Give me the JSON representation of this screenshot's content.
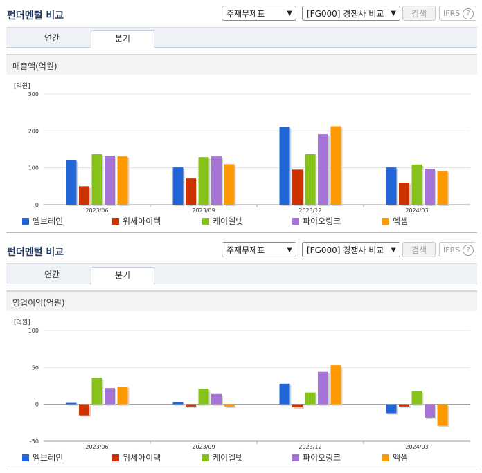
{
  "panels": [
    {
      "title": "펀더멘털 비교",
      "select_statement": "주재무제표",
      "select_compare": "[FG000] 경쟁사 비교",
      "search_label": "검색",
      "ifrs_label": "IFRS",
      "help_label": "?",
      "tabs": [
        "연간",
        "분기"
      ],
      "active_tab": "분기",
      "metric_title": "매출액(억원)",
      "unit": "[억원]"
    },
    {
      "title": "펀더멘털 비교",
      "select_statement": "주재무제표",
      "select_compare": "[FG000] 경쟁사 비교",
      "search_label": "검색",
      "ifrs_label": "IFRS",
      "help_label": "?",
      "tabs": [
        "연간",
        "분기"
      ],
      "active_tab": "분기",
      "metric_title": "영업이익(억원)",
      "unit": "[억원]"
    }
  ],
  "chart_data": [
    {
      "type": "bar",
      "title": "매출액(억원)",
      "ylabel": "[억원]",
      "categories": [
        "2023/06",
        "2023/09",
        "2023/12",
        "2024/03"
      ],
      "ylim": [
        0,
        300
      ],
      "yticks": [
        0,
        100,
        200,
        300
      ],
      "grid": true,
      "legend": "bottom",
      "series": [
        {
          "name": "엠브레인",
          "color": "#2166d9",
          "values": [
            120,
            101,
            211,
            101
          ]
        },
        {
          "name": "위세아이텍",
          "color": "#cc3300",
          "values": [
            50,
            71,
            95,
            60
          ]
        },
        {
          "name": "케이엘넷",
          "color": "#86c21a",
          "values": [
            137,
            129,
            137,
            109
          ]
        },
        {
          "name": "파이오링크",
          "color": "#a574d6",
          "values": [
            133,
            131,
            191,
            97
          ]
        },
        {
          "name": "엑셈",
          "color": "#ff9900",
          "values": [
            131,
            110,
            213,
            92
          ]
        }
      ]
    },
    {
      "type": "bar",
      "title": "영업이익(억원)",
      "ylabel": "[억원]",
      "categories": [
        "2023/06",
        "2023/09",
        "2023/12",
        "2024/03"
      ],
      "ylim": [
        -50,
        100
      ],
      "yticks": [
        -50,
        0,
        50,
        100
      ],
      "grid": true,
      "legend": "bottom",
      "series": [
        {
          "name": "엠브레인",
          "color": "#2166d9",
          "values": [
            2,
            3,
            28,
            -12
          ]
        },
        {
          "name": "위세아이텍",
          "color": "#cc3300",
          "values": [
            -15,
            -3,
            -4,
            -3
          ]
        },
        {
          "name": "케이엘넷",
          "color": "#86c21a",
          "values": [
            36,
            21,
            16,
            18
          ]
        },
        {
          "name": "파이오링크",
          "color": "#a574d6",
          "values": [
            22,
            14,
            44,
            -18
          ]
        },
        {
          "name": "엑셈",
          "color": "#ff9900",
          "values": [
            24,
            -3,
            53,
            -29
          ]
        }
      ]
    }
  ]
}
